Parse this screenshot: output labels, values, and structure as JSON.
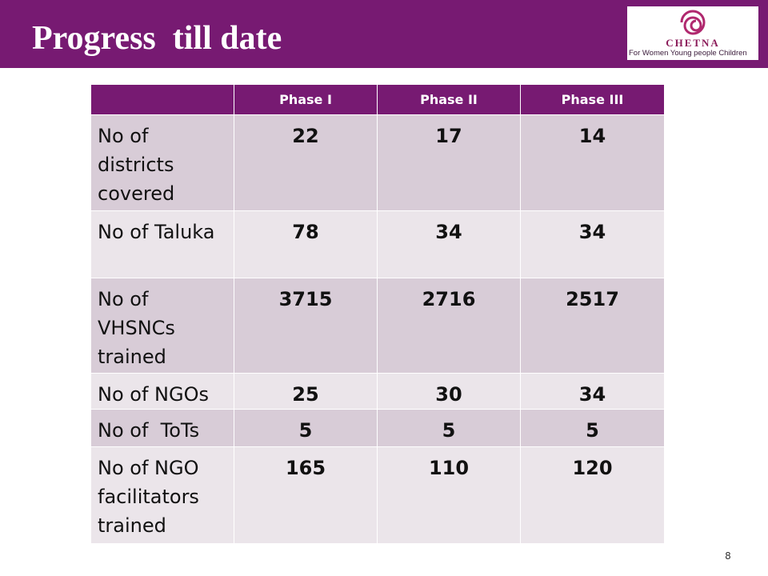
{
  "header": {
    "title": "Progress  till date"
  },
  "logo": {
    "name": "CHETNA",
    "tagline": "For Women Young people Children"
  },
  "table": {
    "columns": [
      "Phase I",
      "Phase II",
      "Phase III"
    ],
    "rows": [
      [
        "No of districts covered",
        22,
        17,
        14
      ],
      [
        "No of Taluka",
        78,
        34,
        34
      ],
      [
        "No of VHSNCs trained",
        3715,
        2716,
        2517
      ],
      [
        "No of NGOs",
        25,
        30,
        34
      ],
      [
        "No of  ToTs",
        5,
        5,
        5
      ],
      [
        "No of NGO facilitators trained",
        165,
        110,
        120
      ]
    ]
  },
  "footer": {
    "page_number": 8
  }
}
